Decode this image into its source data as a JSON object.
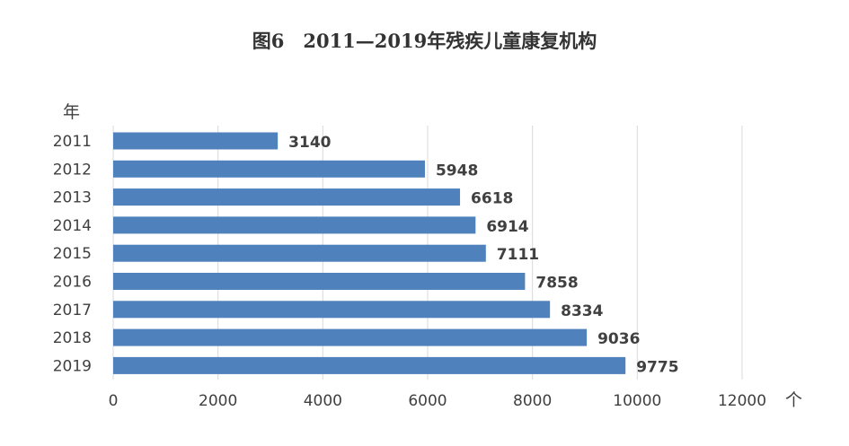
{
  "chart_data": {
    "type": "bar",
    "orientation": "horizontal",
    "title": "图6　2011—2019年残疾儿童康复机构",
    "ylabel": "年",
    "xlabel": "个",
    "categories": [
      "2011",
      "2012",
      "2013",
      "2014",
      "2015",
      "2016",
      "2017",
      "2018",
      "2019"
    ],
    "values": [
      3140,
      5948,
      6618,
      6914,
      7111,
      7858,
      8334,
      9036,
      9775
    ],
    "xlim": [
      0,
      12000
    ],
    "xticks": [
      0,
      2000,
      4000,
      6000,
      8000,
      10000,
      12000
    ],
    "grid": "vertical",
    "legend": "none",
    "bar_color": "#4f81bd",
    "grid_color": "#d9d9d9"
  }
}
